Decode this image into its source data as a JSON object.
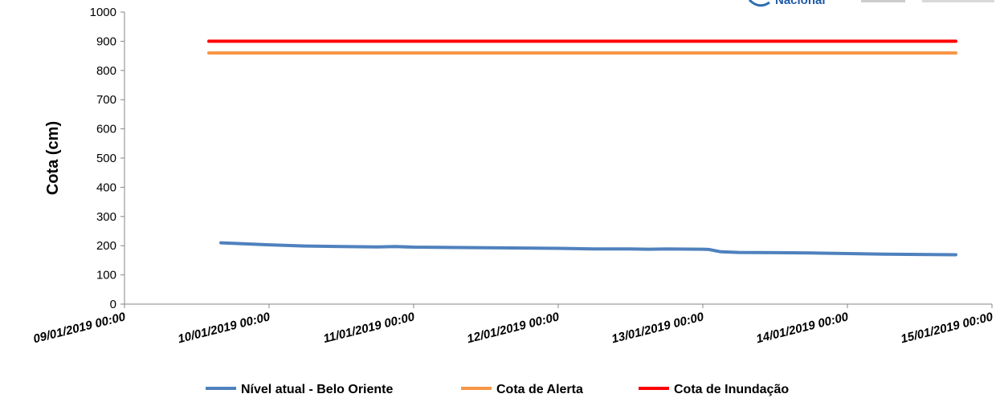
{
  "chart_data": {
    "type": "line",
    "title": "",
    "xlabel": "",
    "ylabel": "Cota (cm)",
    "ylim": [
      0,
      1000
    ],
    "yticks": [
      0,
      100,
      200,
      300,
      400,
      500,
      600,
      700,
      800,
      900,
      1000
    ],
    "xlim": [
      "09/01/2019 00:00",
      "15/01/2019 00:00"
    ],
    "xticks": [
      "09/01/2019 00:00",
      "10/01/2019 00:00",
      "11/01/2019 00:00",
      "12/01/2019 00:00",
      "13/01/2019 00:00",
      "14/01/2019 00:00",
      "15/01/2019 00:00"
    ],
    "grid": false,
    "legend_position": "bottom",
    "series": [
      {
        "name": "Nível atual - Belo Oriente",
        "color": "#4f81bd",
        "points": [
          [
            "09/01/2019 16:00",
            210
          ],
          [
            "10/01/2019 00:00",
            203
          ],
          [
            "10/01/2019 06:00",
            199
          ],
          [
            "10/01/2019 12:00",
            197
          ],
          [
            "10/01/2019 18:00",
            196
          ],
          [
            "10/01/2019 21:00",
            197
          ],
          [
            "11/01/2019 00:00",
            195
          ],
          [
            "11/01/2019 06:00",
            194
          ],
          [
            "11/01/2019 12:00",
            193
          ],
          [
            "12/01/2019 00:00",
            191
          ],
          [
            "12/01/2019 06:00",
            189
          ],
          [
            "12/01/2019 12:00",
            189
          ],
          [
            "12/01/2019 15:00",
            188
          ],
          [
            "12/01/2019 18:00",
            189
          ],
          [
            "13/01/2019 00:00",
            188
          ],
          [
            "13/01/2019 01:00",
            187
          ],
          [
            "13/01/2019 03:00",
            179
          ],
          [
            "13/01/2019 06:00",
            177
          ],
          [
            "13/01/2019 12:00",
            176
          ],
          [
            "13/01/2019 18:00",
            175
          ],
          [
            "14/01/2019 00:00",
            173
          ],
          [
            "14/01/2019 06:00",
            171
          ],
          [
            "14/01/2019 12:00",
            170
          ],
          [
            "14/01/2019 18:00",
            169
          ]
        ]
      },
      {
        "name": "Cota de Alerta",
        "color": "#f79646",
        "points": [
          [
            "09/01/2019 14:00",
            860
          ],
          [
            "14/01/2019 18:00",
            860
          ]
        ]
      },
      {
        "name": "Cota de Inundação",
        "color": "#ff0000",
        "points": [
          [
            "09/01/2019 14:00",
            900
          ],
          [
            "14/01/2019 18:00",
            900
          ]
        ]
      }
    ]
  },
  "logo": {
    "text": "Nacional"
  }
}
